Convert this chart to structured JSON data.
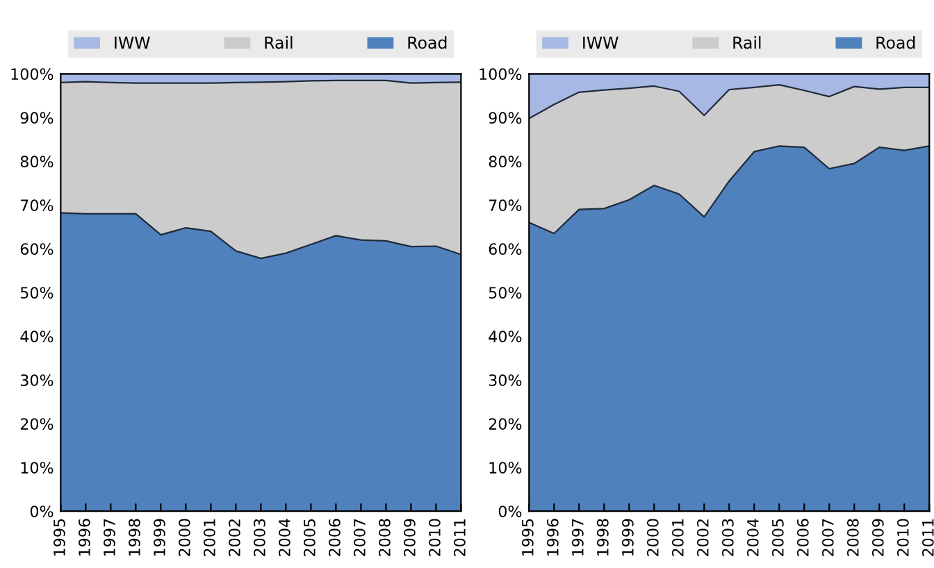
{
  "chart_data": [
    {
      "type": "area",
      "stacked": true,
      "legend": "top",
      "grid": false,
      "categories": [
        "1995",
        "1996",
        "1997",
        "1998",
        "1999",
        "2000",
        "2001",
        "2002",
        "2003",
        "2004",
        "2005",
        "2006",
        "2007",
        "2008",
        "2009",
        "2010",
        "2011"
      ],
      "ylim": [
        0,
        100
      ],
      "yticks": [
        {
          "value": 0,
          "label": "0%"
        },
        {
          "value": 10,
          "label": "10%"
        },
        {
          "value": 20,
          "label": "20%"
        },
        {
          "value": 30,
          "label": "30%"
        },
        {
          "value": 40,
          "label": "40%"
        },
        {
          "value": 50,
          "label": "50%"
        },
        {
          "value": 60,
          "label": "60%"
        },
        {
          "value": 70,
          "label": "70%"
        },
        {
          "value": 80,
          "label": "80%"
        },
        {
          "value": 90,
          "label": "90%"
        },
        {
          "value": 100,
          "label": "100%"
        }
      ],
      "series": [
        {
          "name": "Road",
          "color": "#4f81bd",
          "values": [
            68.2,
            68,
            68,
            68,
            63.2,
            64.8,
            64,
            59.5,
            57.8,
            59,
            61,
            63,
            62,
            61.8,
            60.5,
            60.6,
            58.7
          ]
        },
        {
          "name": "Rail",
          "color": "#cccccc",
          "values": [
            29.8,
            30.2,
            30,
            29.9,
            34.7,
            33.1,
            33.9,
            38.5,
            40.3,
            39.2,
            37.4,
            35.5,
            36.5,
            36.7,
            37.4,
            37.4,
            39.4
          ]
        },
        {
          "name": "IWW",
          "color": "#a6b8e3",
          "values": [
            2,
            1.8,
            2,
            2.1,
            2.1,
            2.1,
            2.1,
            2,
            1.9,
            1.8,
            1.6,
            1.5,
            1.5,
            1.5,
            2.1,
            2,
            1.9
          ]
        }
      ]
    },
    {
      "type": "area",
      "stacked": true,
      "legend": "top",
      "grid": false,
      "categories": [
        "1995",
        "1996",
        "1997",
        "1998",
        "1999",
        "2000",
        "2001",
        "2002",
        "2003",
        "2004",
        "2005",
        "2006",
        "2007",
        "2008",
        "2009",
        "2010",
        "2011"
      ],
      "ylim": [
        0,
        100
      ],
      "yticks": [
        {
          "value": 0,
          "label": "0%"
        },
        {
          "value": 10,
          "label": "10%"
        },
        {
          "value": 20,
          "label": "20%"
        },
        {
          "value": 30,
          "label": "30%"
        },
        {
          "value": 40,
          "label": "40%"
        },
        {
          "value": 50,
          "label": "50%"
        },
        {
          "value": 60,
          "label": "60%"
        },
        {
          "value": 70,
          "label": "70%"
        },
        {
          "value": 80,
          "label": "80%"
        },
        {
          "value": 90,
          "label": "90%"
        },
        {
          "value": 100,
          "label": "100%"
        }
      ],
      "series": [
        {
          "name": "Road",
          "color": "#4f81bd",
          "values": [
            66,
            63.5,
            69,
            69.2,
            71.2,
            74.5,
            72.5,
            67.3,
            75.5,
            82.2,
            83.5,
            83.2,
            78.3,
            79.5,
            83.2,
            82.5,
            83.5
          ]
        },
        {
          "name": "Rail",
          "color": "#cccccc",
          "values": [
            23.8,
            29.5,
            26.8,
            27.1,
            25.5,
            22.7,
            23.5,
            23.2,
            20.9,
            14.7,
            14,
            13,
            16.5,
            17.6,
            13.3,
            14.4,
            13.4
          ]
        },
        {
          "name": "IWW",
          "color": "#a6b8e3",
          "values": [
            10.2,
            7,
            4.2,
            3.7,
            3.3,
            2.8,
            4,
            9.5,
            3.6,
            3.1,
            2.5,
            3.8,
            5.2,
            2.9,
            3.5,
            3.1,
            3.1
          ]
        }
      ]
    }
  ]
}
